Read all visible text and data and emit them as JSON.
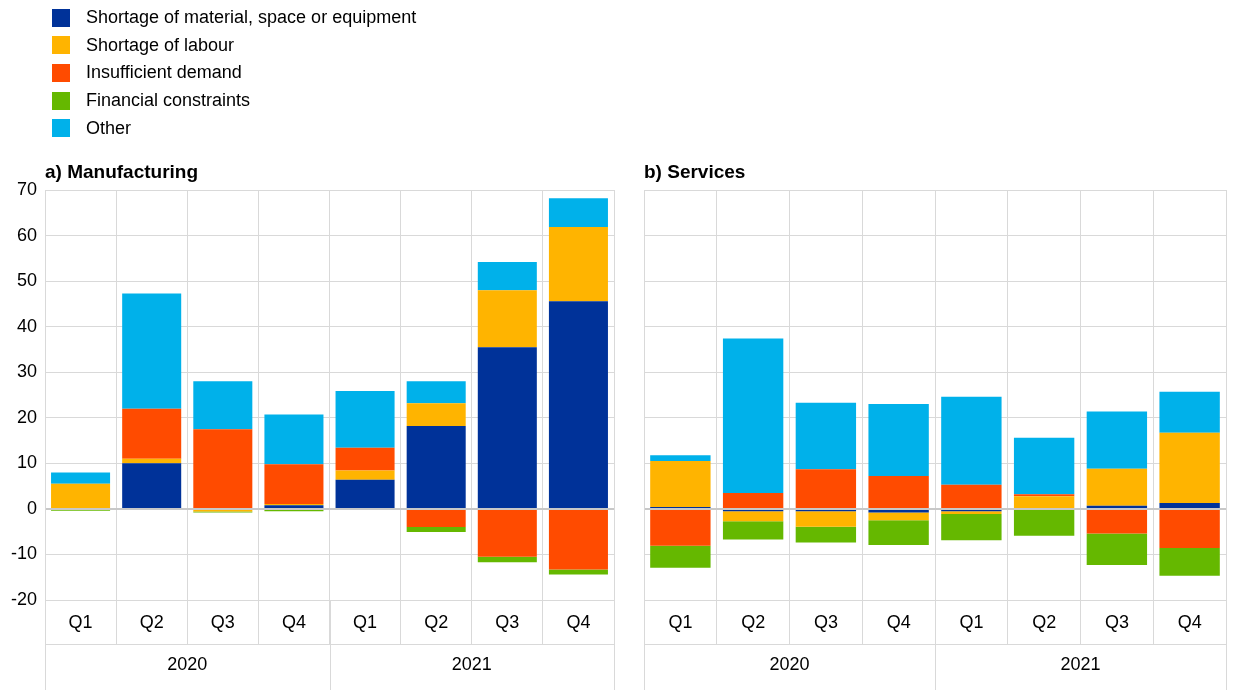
{
  "chart_data": [
    {
      "type": "bar",
      "title": "a) Manufacturing",
      "stacked": true,
      "legend": "top left",
      "grid": true,
      "categories": [
        "Q1",
        "Q2",
        "Q3",
        "Q4",
        "Q1",
        "Q2",
        "Q3",
        "Q4"
      ],
      "annotations": [
        "2020",
        "2021"
      ],
      "ylim": [
        -20,
        70
      ],
      "yticks": [
        -20,
        -10,
        0,
        10,
        20,
        30,
        40,
        50,
        60,
        70
      ],
      "series": [
        {
          "name": "Shortage of material, space or equipment",
          "color": "#003299",
          "values": [
            0,
            10,
            0,
            0.8,
            6.4,
            18.2,
            35.5,
            45.6
          ]
        },
        {
          "name": "Shortage of labour",
          "color": "#ffb400",
          "values": [
            5.5,
            1,
            -0.6,
            0.3,
            2,
            5,
            12.5,
            16.3
          ]
        },
        {
          "name": "Insufficient demand",
          "color": "#ff4b00",
          "values": [
            0,
            11,
            17.5,
            8.7,
            5,
            -4,
            -10.5,
            -13.3
          ]
        },
        {
          "name": "Financial constraints",
          "color": "#65b800",
          "values": [
            -0.4,
            0,
            -0.2,
            -0.5,
            0,
            -1.1,
            -1.2,
            -1.1
          ]
        },
        {
          "name": "Other",
          "color": "#00b1ea",
          "values": [
            2.5,
            25.3,
            10.5,
            10.9,
            12.5,
            4.8,
            6.2,
            6.3
          ]
        }
      ]
    },
    {
      "type": "bar",
      "title": "b) Services",
      "stacked": true,
      "grid": true,
      "tick_labels": "x",
      "categories": [
        "Q1",
        "Q2",
        "Q3",
        "Q4",
        "Q1",
        "Q2",
        "Q3",
        "Q4"
      ],
      "annotations": [
        "2020",
        "2021"
      ],
      "ylim": [
        -20,
        70
      ],
      "yticks": [
        -20,
        -10,
        0,
        10,
        20,
        30,
        40,
        50,
        60,
        70
      ],
      "series": [
        {
          "color": "#003299",
          "values": [
            0.4,
            -0.5,
            -0.5,
            -0.8,
            -0.5,
            0,
            0.7,
            1.3
          ]
        },
        {
          "color": "#ffb400",
          "values": [
            10.1,
            -2.2,
            -3.4,
            -1.7,
            -0.6,
            2.8,
            8.1,
            15.4
          ]
        },
        {
          "color": "#ff4b00",
          "values": [
            -8.1,
            3.5,
            8.7,
            7.2,
            5.3,
            0.4,
            -5.4,
            -8.6
          ]
        },
        {
          "color": "#65b800",
          "values": [
            -4.8,
            -4.0,
            -3.5,
            -5.4,
            -5.8,
            -5.9,
            -6.9,
            -6.1
          ]
        },
        {
          "color": "#00b1ea",
          "values": [
            1.3,
            33.9,
            14.6,
            15.8,
            19.3,
            12.4,
            12.6,
            9.0
          ]
        }
      ]
    }
  ]
}
